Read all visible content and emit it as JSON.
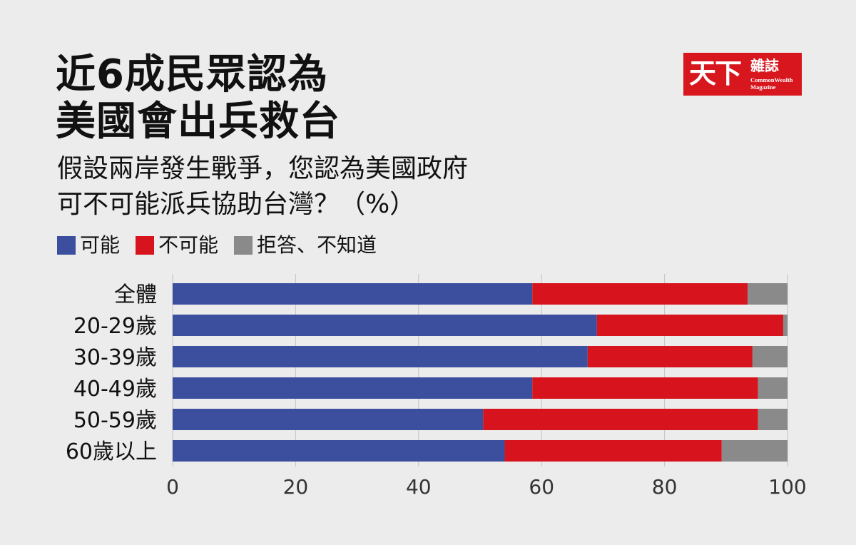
{
  "header": {
    "title_line1": "近6成民眾認為",
    "title_line2": "美國會出兵救台",
    "subtitle_line1": "假設兩岸發生戰爭，您認為美國政府",
    "subtitle_line2": "可不可能派兵協助台灣？（%）"
  },
  "logo": {
    "main": "天下",
    "sub": "雜誌",
    "en_line1": "CommonWealth",
    "en_line2": "Magazine"
  },
  "colors": {
    "possible": "#3c4f9f",
    "impossible": "#d7141d",
    "refused": "#8a8a8a"
  },
  "chart_data": {
    "type": "bar",
    "orientation": "horizontal",
    "stacked": true,
    "categories": [
      "全體",
      "20-29歲",
      "30-39歲",
      "40-49歲",
      "50-59歲",
      "60歲以上"
    ],
    "series": [
      {
        "name": "可能",
        "values": [
          58.5,
          69,
          67.5,
          58.5,
          50.5,
          54
        ]
      },
      {
        "name": "不可能",
        "values": [
          35,
          30.3,
          26.8,
          36.7,
          44.7,
          35.3
        ]
      },
      {
        "name": "拒答、不知道",
        "values": [
          6.5,
          0.7,
          5.7,
          4.8,
          4.8,
          10.7
        ]
      }
    ],
    "xlim": [
      0,
      100
    ],
    "xticks": [
      "0",
      "20",
      "40",
      "60",
      "80",
      "100"
    ],
    "grid": true,
    "legend_position": "top-left"
  }
}
